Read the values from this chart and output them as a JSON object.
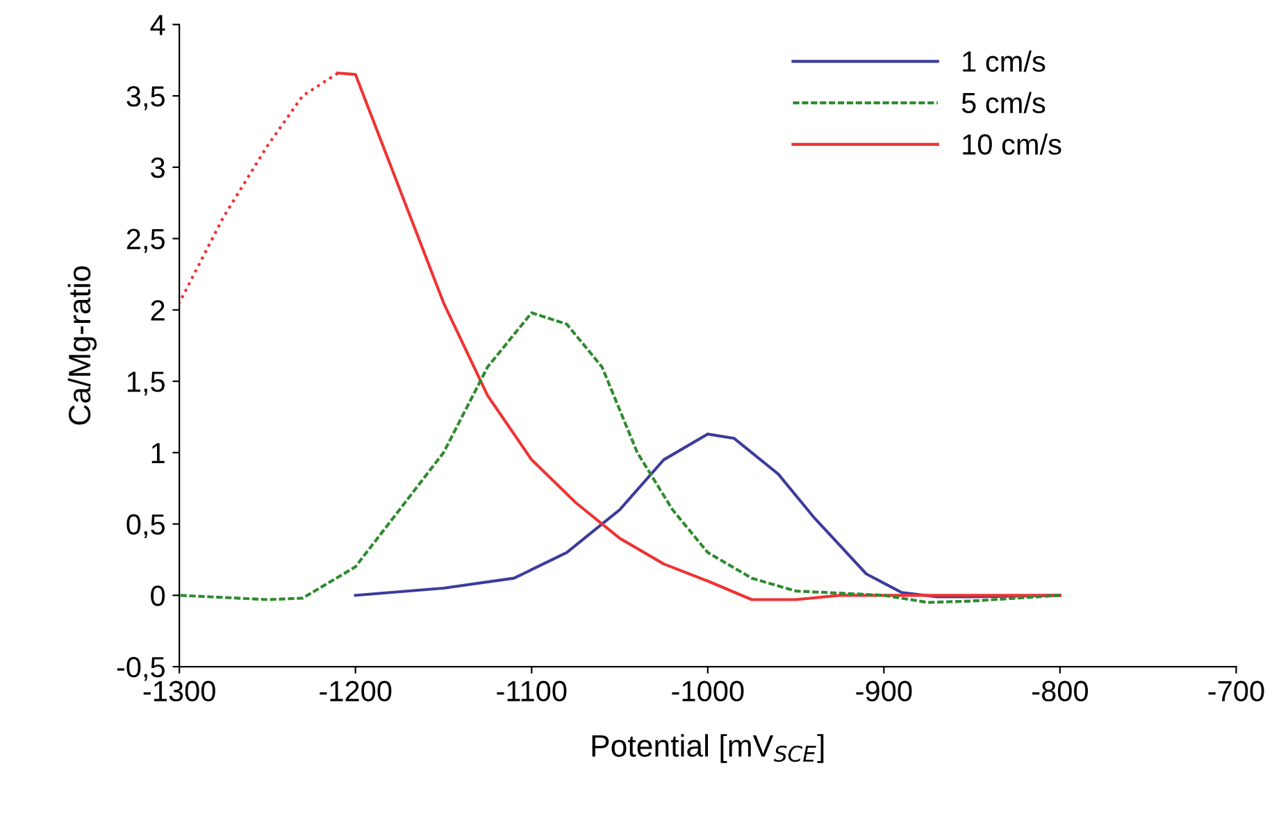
{
  "chart_data": {
    "type": "line",
    "xlabel": "Potential [mV$_{SCE}$]",
    "ylabel": "Ca/Mg-ratio",
    "xlim": [
      -1300,
      -700
    ],
    "xticks": [
      {
        "value": -1300,
        "label": "-1300"
      },
      {
        "value": -1200,
        "label": "-1200"
      },
      {
        "value": -1100,
        "label": "-1100"
      },
      {
        "value": -1000,
        "label": "-1000"
      },
      {
        "value": -900,
        "label": "-900"
      },
      {
        "value": -800,
        "label": "-800"
      },
      {
        "value": -700,
        "label": "-700"
      }
    ],
    "ylim": [
      -0.5,
      4
    ],
    "yticks": [
      {
        "value": -0.5,
        "label": "-0,5"
      },
      0,
      {
        "value": 0.5,
        "label": "0,5"
      },
      1,
      {
        "value": 1.5,
        "label": "1,5"
      },
      2,
      {
        "value": 2.5,
        "label": "2,5"
      },
      3,
      {
        "value": 3.5,
        "label": "3,5"
      },
      4
    ],
    "grid": false,
    "legend": "top right",
    "marker": "none",
    "series": [
      {
        "name": "1 cm/s",
        "color": "#3c3c9c",
        "line_style": "solid",
        "x": [
          -1200,
          -1150,
          -1110,
          -1080,
          -1050,
          -1025,
          -1000,
          -985,
          -960,
          -940,
          -910,
          -890,
          -870,
          -850,
          -800
        ],
        "values": [
          0,
          0.05,
          0.12,
          0.3,
          0.6,
          0.95,
          1.13,
          1.1,
          0.85,
          0.55,
          0.15,
          0.02,
          -0.01,
          -0.01,
          0
        ]
      },
      {
        "name": "5 cm/s",
        "color": "#2e8b2e",
        "line_style": "dashed",
        "x": [
          -1300,
          -1250,
          -1230,
          -1200,
          -1150,
          -1125,
          -1100,
          -1080,
          -1060,
          -1040,
          -1020,
          -1000,
          -975,
          -950,
          -900,
          -875,
          -850,
          -800
        ],
        "values": [
          0,
          -0.03,
          -0.02,
          0.2,
          1.0,
          1.6,
          1.98,
          1.9,
          1.6,
          1.0,
          0.6,
          0.3,
          0.12,
          0.03,
          0,
          -0.05,
          -0.04,
          0
        ]
      },
      {
        "name": "10 cm/s",
        "color": "#ee3333",
        "line_style": "solid",
        "x": [
          -1210,
          -1200,
          -1175,
          -1150,
          -1125,
          -1100,
          -1075,
          -1050,
          -1025,
          -1000,
          -975,
          -950,
          -925,
          -900,
          -800
        ],
        "values": [
          3.66,
          3.65,
          2.85,
          2.05,
          1.4,
          0.95,
          0.65,
          0.4,
          0.22,
          0.1,
          -0.03,
          -0.03,
          0,
          0,
          0
        ]
      },
      {
        "color": "#ee3333",
        "line_style": "dotted",
        "x": [
          -1300,
          -1275,
          -1250,
          -1230,
          -1210
        ],
        "values": [
          2.05,
          2.65,
          3.15,
          3.5,
          3.66
        ]
      }
    ]
  }
}
